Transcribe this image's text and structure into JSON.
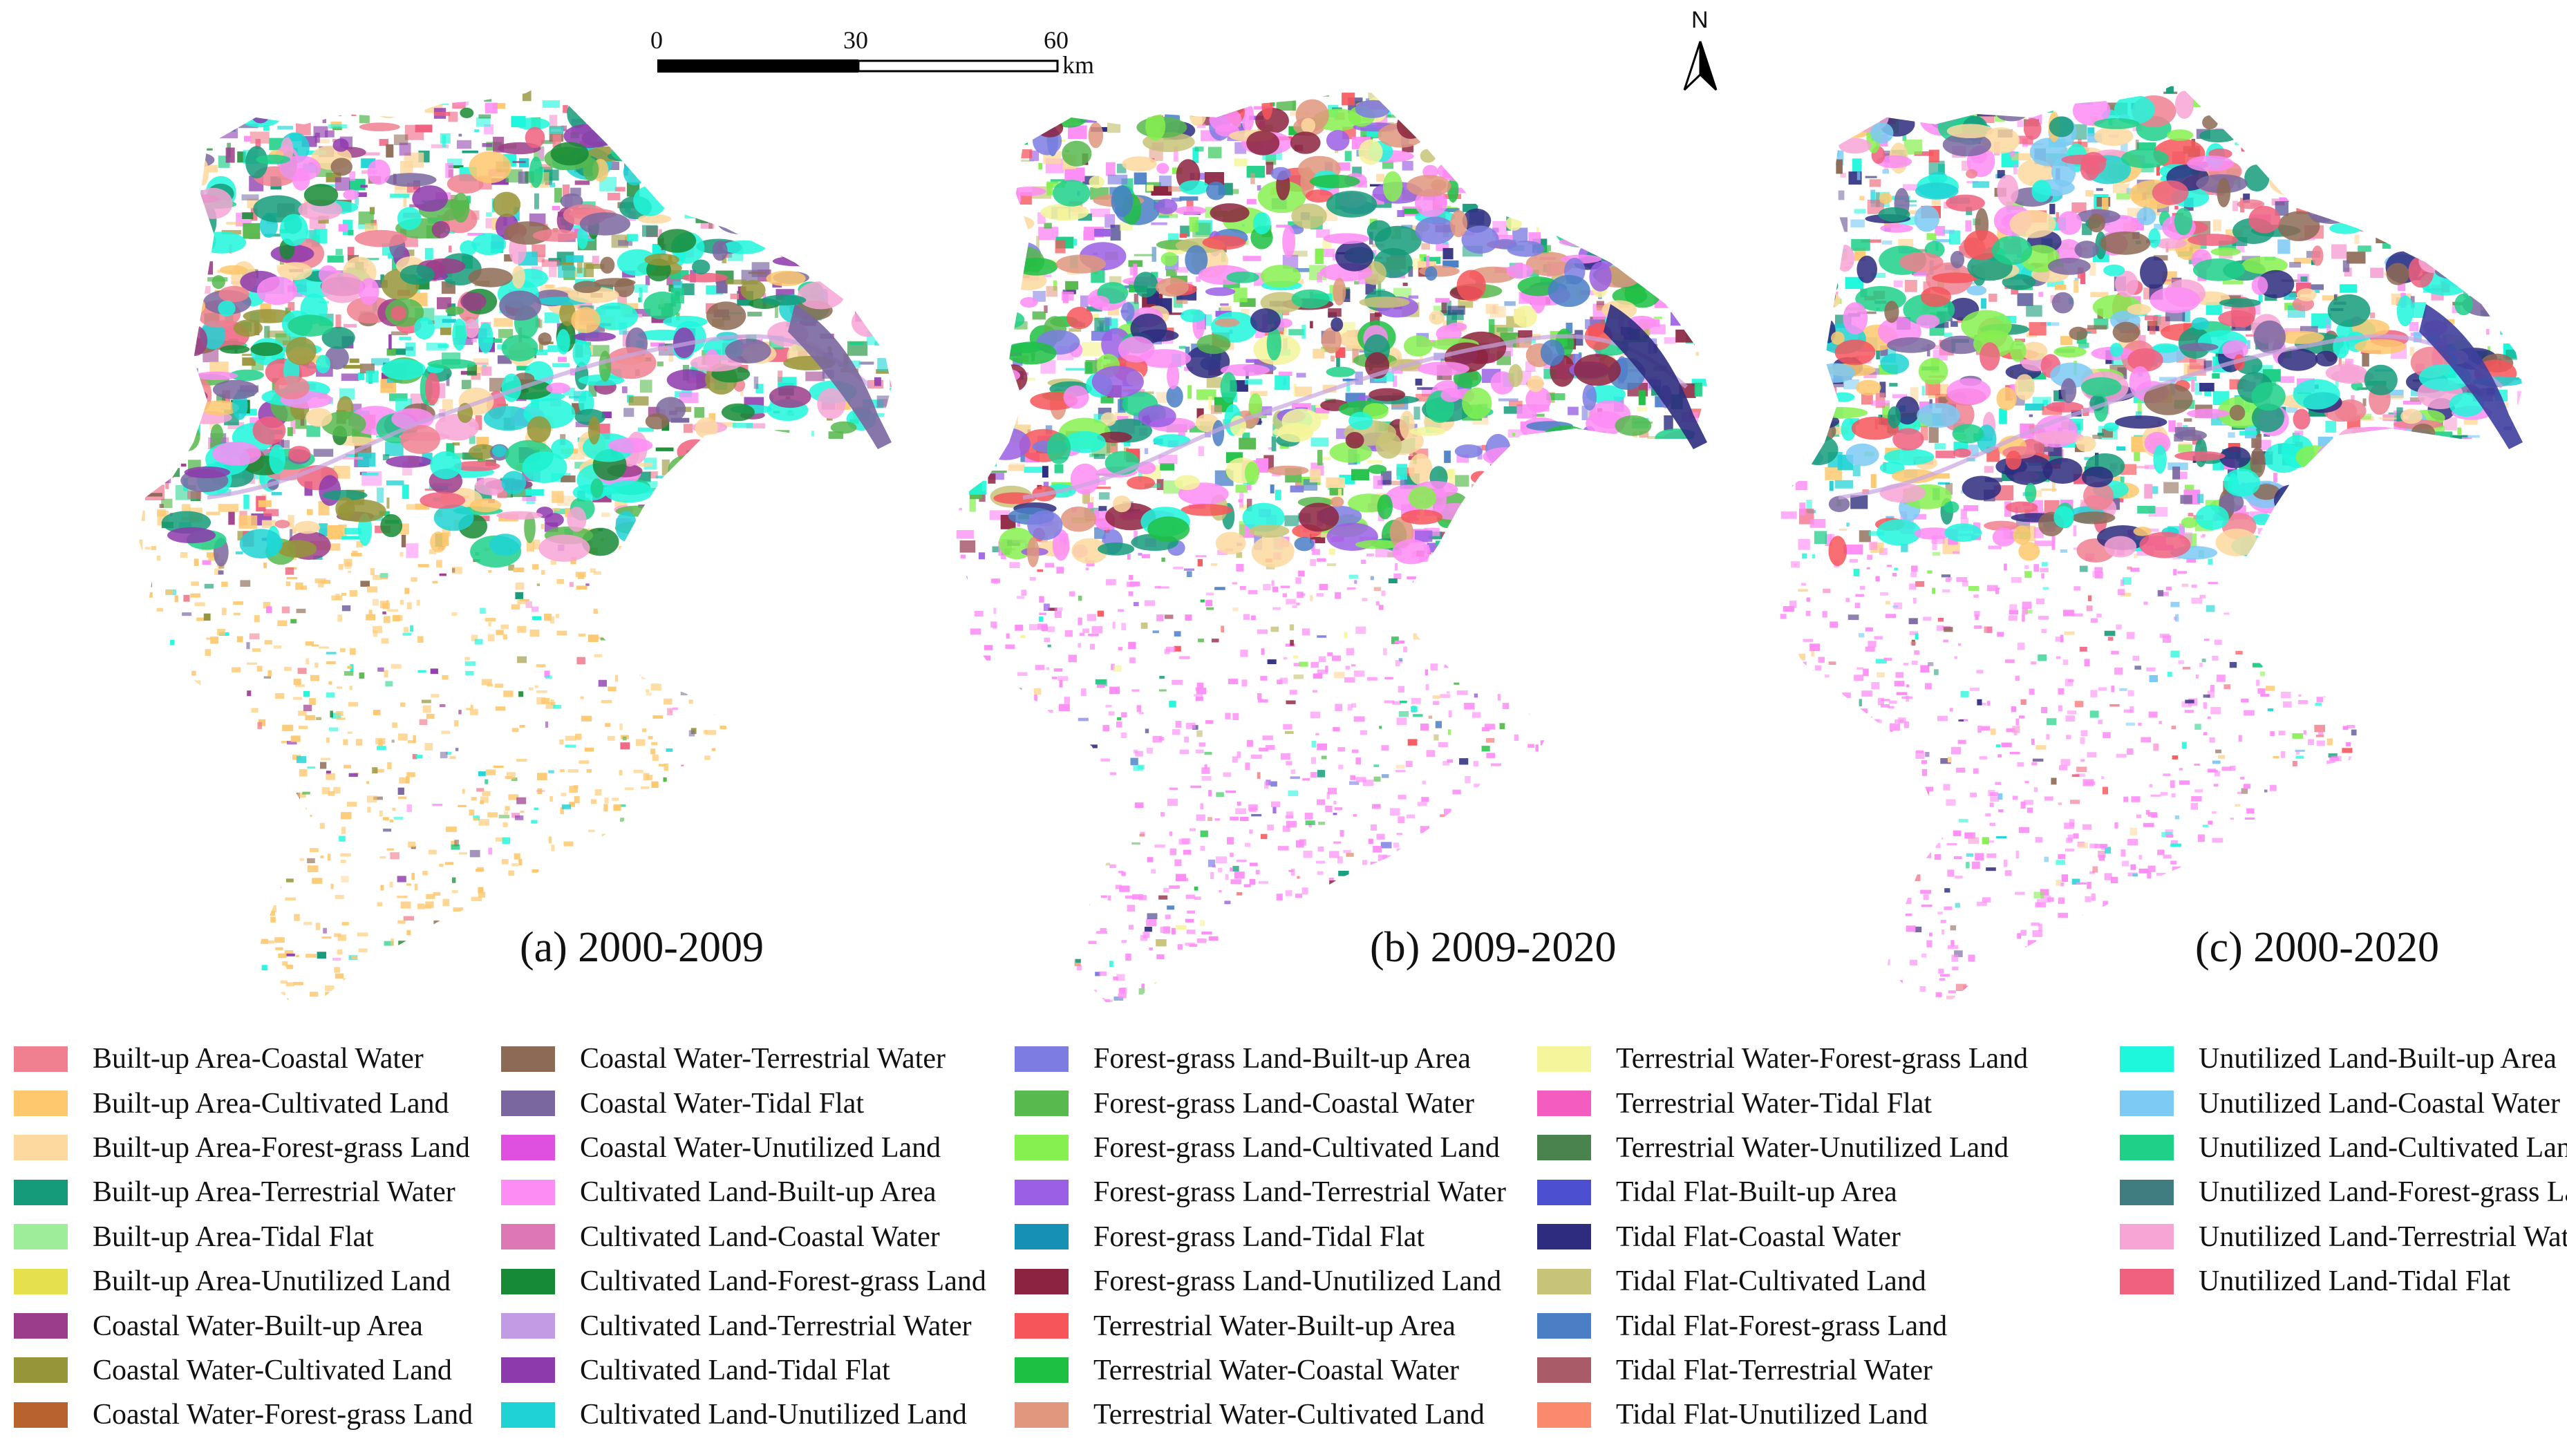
{
  "panels": [
    {
      "caption": "(a) 2000-2009"
    },
    {
      "caption": "(b) 2009-2020"
    },
    {
      "caption": "(c) 2000-2020"
    }
  ],
  "scale_bar": {
    "ticks": [
      "0",
      "30",
      "60"
    ],
    "unit": "km"
  },
  "north_arrow": {
    "label": "N"
  },
  "legend": [
    {
      "label": "Built-up Area-Coastal Water",
      "color": "#f08090"
    },
    {
      "label": "Built-up Area-Cultivated Land",
      "color": "#fdc86e"
    },
    {
      "label": "Built-up Area-Forest-grass Land",
      "color": "#fdd9a0"
    },
    {
      "label": "Built-up Area-Terrestrial Water",
      "color": "#159b7a"
    },
    {
      "label": "Built-up Area-Tidal Flat",
      "color": "#9ded9a"
    },
    {
      "label": "Built-up Area-Unutilized Land",
      "color": "#e4e04e"
    },
    {
      "label": "Coastal Water-Built-up Area",
      "color": "#9b3d8a"
    },
    {
      "label": "Coastal Water-Cultivated Land",
      "color": "#97953a"
    },
    {
      "label": "Coastal Water-Forest-grass Land",
      "color": "#b8622e"
    },
    {
      "label": "Coastal Water-Terrestrial Water",
      "color": "#8d6a55"
    },
    {
      "label": "Coastal Water-Tidal Flat",
      "color": "#7a67a0"
    },
    {
      "label": "Coastal Water-Unutilized Land",
      "color": "#df4fe0"
    },
    {
      "label": "Cultivated Land-Built-up Area",
      "color": "#fd8cf5"
    },
    {
      "label": "Cultivated Land-Coastal Water",
      "color": "#de78b5"
    },
    {
      "label": "Cultivated Land-Forest-grass Land",
      "color": "#178a35"
    },
    {
      "label": "Cultivated Land-Terrestrial Water",
      "color": "#c19be3"
    },
    {
      "label": "Cultivated Land-Tidal Flat",
      "color": "#8d3aad"
    },
    {
      "label": "Cultivated Land-Unutilized Land",
      "color": "#1fd3d5"
    },
    {
      "label": "Forest-grass Land-Built-up Area",
      "color": "#7c7ce2"
    },
    {
      "label": "Forest-grass Land-Coastal Water",
      "color": "#57b94e"
    },
    {
      "label": "Forest-grass Land-Cultivated Land",
      "color": "#86f050"
    },
    {
      "label": "Forest-grass Land-Terrestrial Water",
      "color": "#9a5fe4"
    },
    {
      "label": "Forest-grass Land-Tidal Flat",
      "color": "#1690b5"
    },
    {
      "label": "Forest-grass Land-Unutilized Land",
      "color": "#8c2340"
    },
    {
      "label": "Terrestrial Water-Built-up Area",
      "color": "#f6555a"
    },
    {
      "label": "Terrestrial Water-Coastal Water",
      "color": "#1ec043"
    },
    {
      "label": "Terrestrial Water-Cultivated Land",
      "color": "#e1977e"
    },
    {
      "label": "Terrestrial Water-Forest-grass Land",
      "color": "#f5f59b"
    },
    {
      "label": "Terrestrial Water-Tidal Flat",
      "color": "#f45cbf"
    },
    {
      "label": "Terrestrial Water-Unutilized Land",
      "color": "#4b834e"
    },
    {
      "label": "Tidal Flat-Built-up Area",
      "color": "#4c4fd0"
    },
    {
      "label": "Tidal Flat-Coastal Water",
      "color": "#2d2c7e"
    },
    {
      "label": "Tidal Flat-Cultivated Land",
      "color": "#c7c378"
    },
    {
      "label": "Tidal Flat-Forest-grass Land",
      "color": "#4a7fc6"
    },
    {
      "label": "Tidal Flat-Terrestrial Water",
      "color": "#a95c68"
    },
    {
      "label": "Tidal Flat-Unutilized Land",
      "color": "#fa8a6e"
    },
    {
      "label": "Unutilized Land-Built-up Area",
      "color": "#1ff7dc"
    },
    {
      "label": "Unutilized Land-Coastal Water",
      "color": "#7dcaf5"
    },
    {
      "label": "Unutilized Land-Cultivated Land",
      "color": "#1fd088"
    },
    {
      "label": "Unutilized Land-Forest-grass Land",
      "color": "#3f7d80"
    },
    {
      "label": "Unutilized Land-Terrestrial Water",
      "color": "#f7a5d5"
    },
    {
      "label": "Unutilized Land-Tidal Flat",
      "color": "#f0607f"
    }
  ]
}
